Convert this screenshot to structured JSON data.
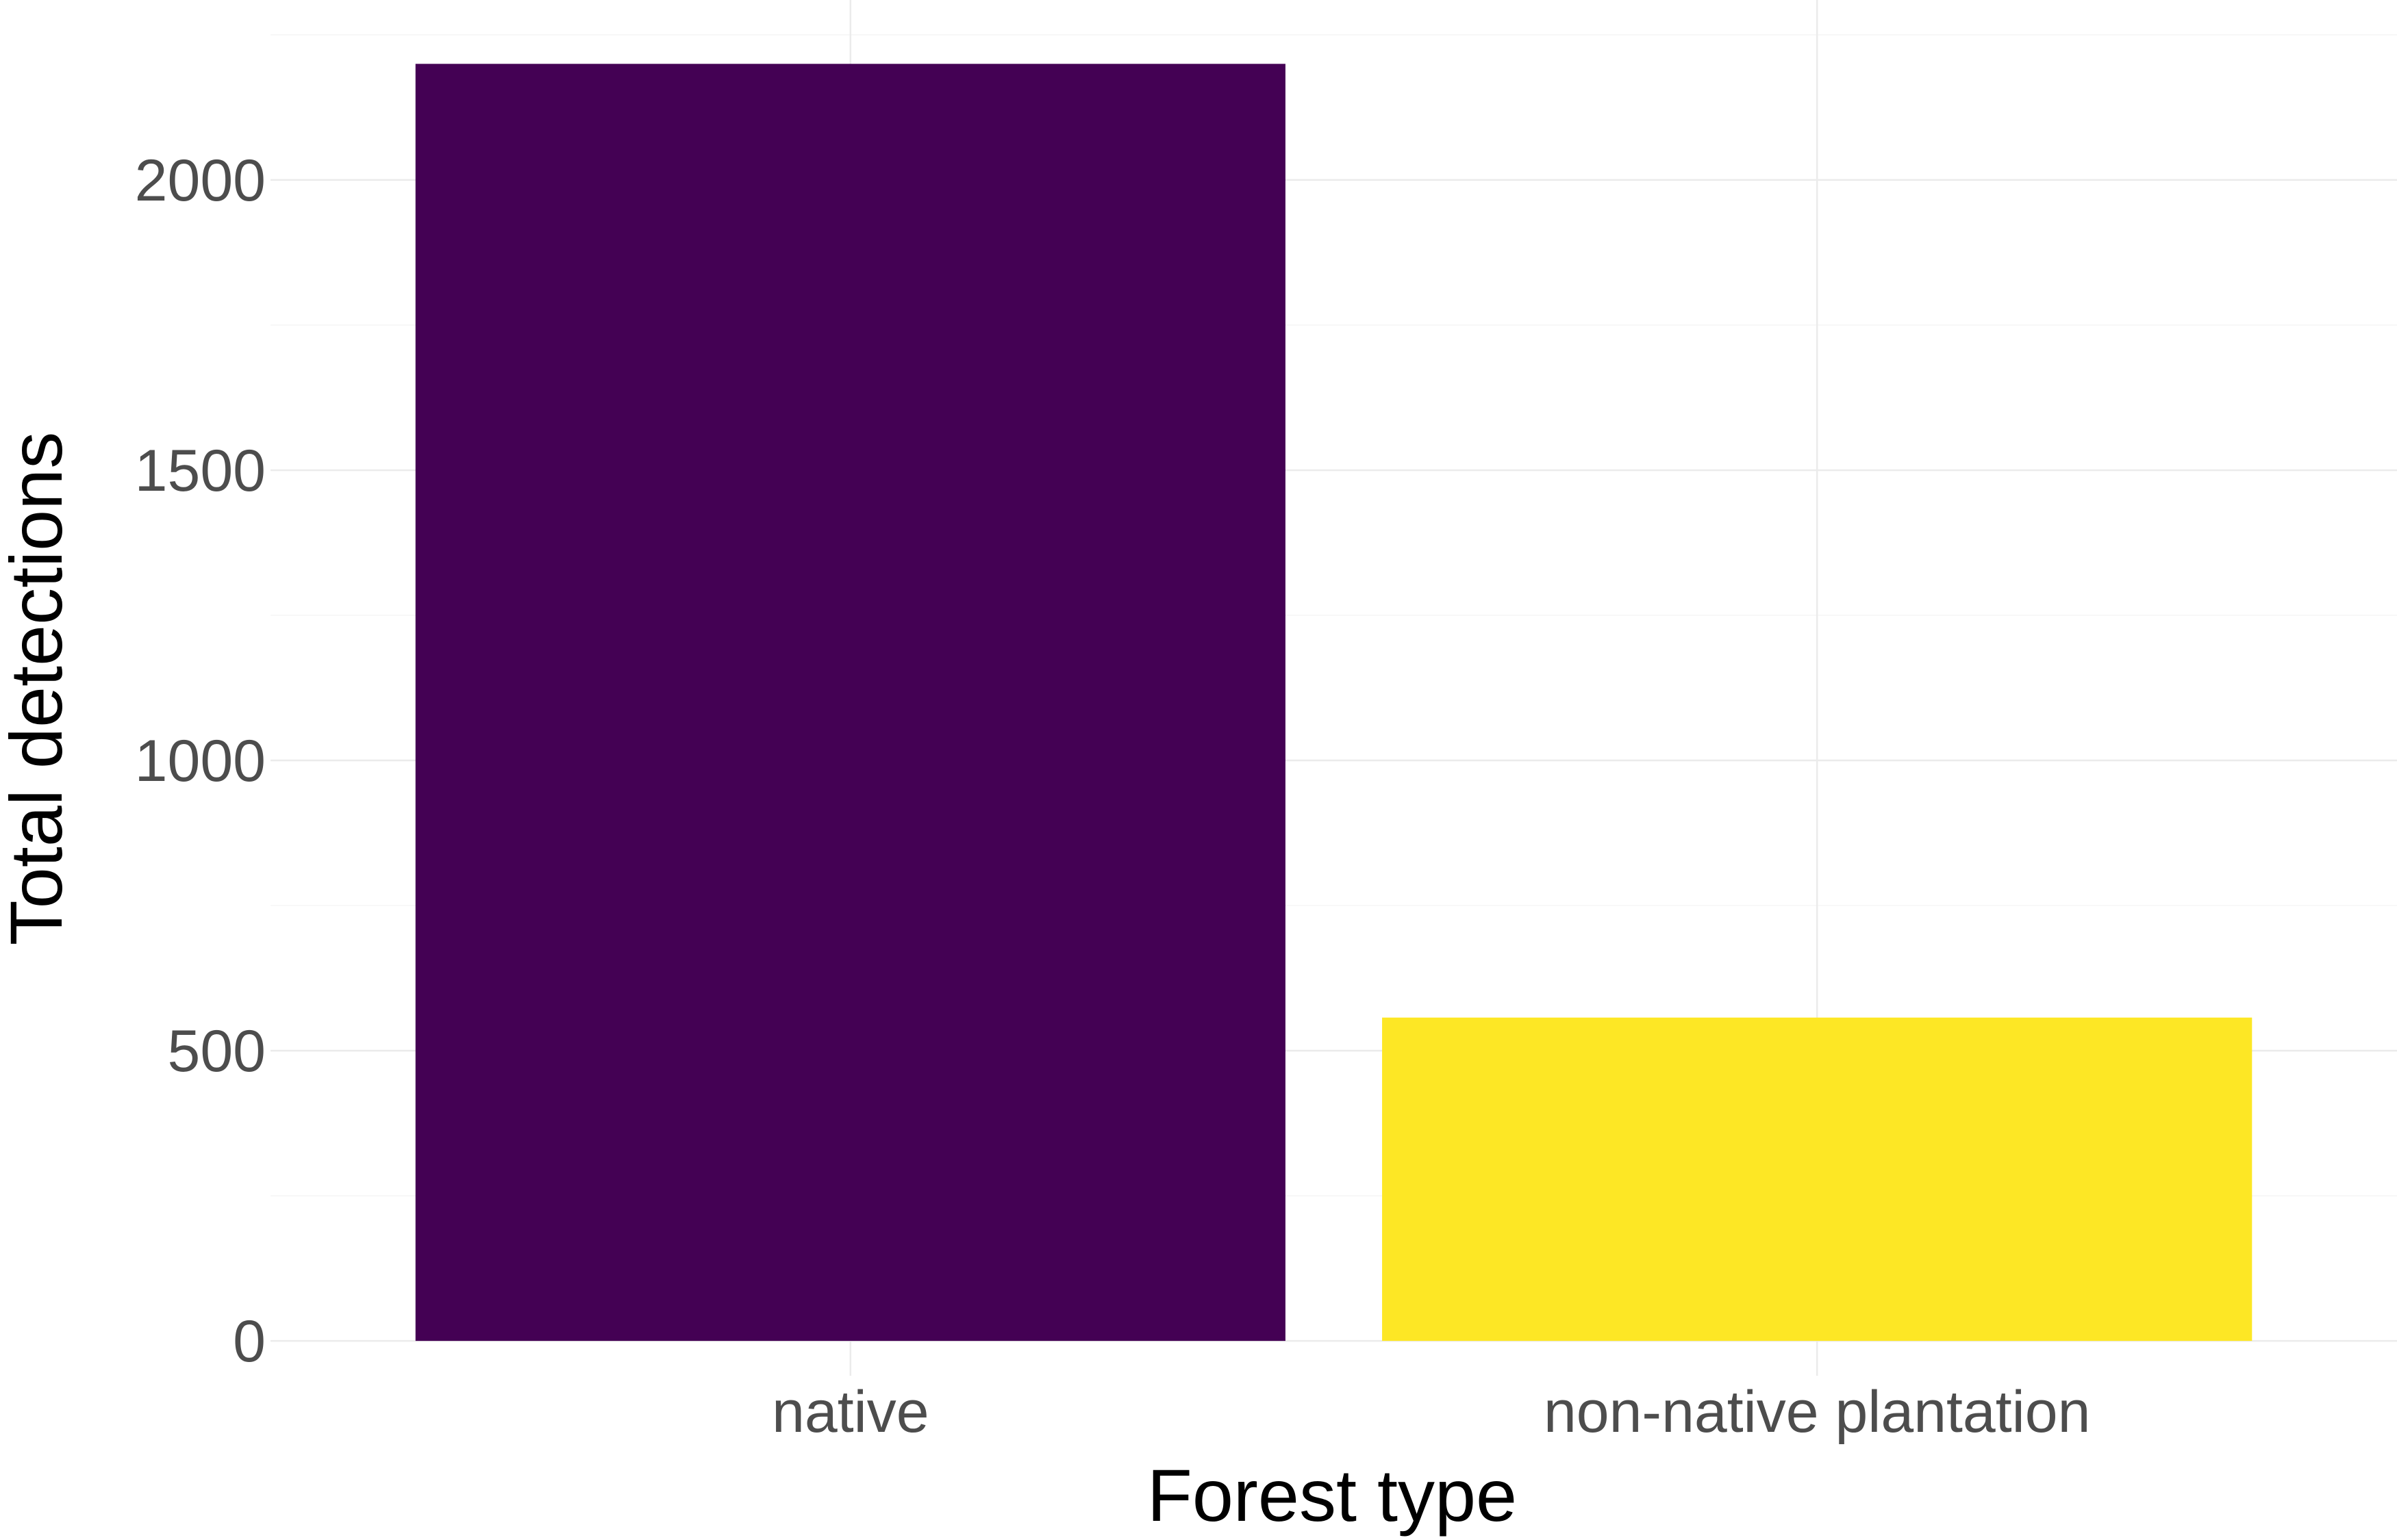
{
  "chart_data": {
    "type": "bar",
    "categories": [
      "native",
      "non-native plantation"
    ],
    "values": [
      2200,
      557
    ],
    "colors": [
      "#440154",
      "#FDE725"
    ],
    "title": "",
    "xlabel": "Forest type",
    "ylabel": "Total detections",
    "ylim": [
      -60,
      2310
    ],
    "yticks": [
      0,
      500,
      1000,
      1500,
      2000
    ],
    "grid": true,
    "legend": "none"
  }
}
